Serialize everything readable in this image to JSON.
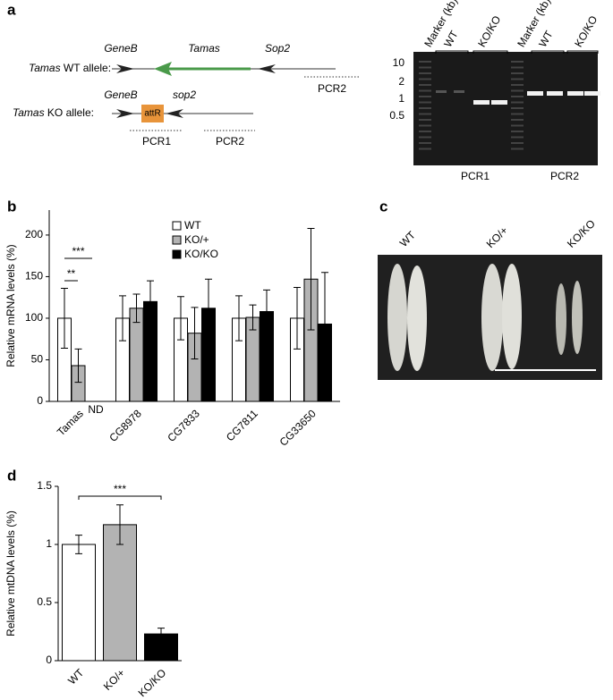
{
  "panel_a": {
    "label": "a",
    "wt_allele": {
      "gene": "Tamas",
      "name": "WT allele:",
      "genes": [
        "GeneB",
        "Tamas",
        "Sop2"
      ],
      "primer": "PCR2"
    },
    "ko_allele": {
      "gene": "Tamas",
      "name": "KO allele:",
      "genes": [
        "GeneB",
        "sop2"
      ],
      "cassette": "attR",
      "primers": [
        "PCR1",
        "PCR2"
      ]
    },
    "gel": {
      "lanes": [
        "Marker (kb)",
        "WT",
        "KO/KO",
        "Marker (kb)",
        "WT",
        "KO/KO"
      ],
      "sizes": [
        "10",
        "2",
        "1",
        "0.5"
      ],
      "reactions": [
        "PCR1",
        "PCR2"
      ]
    }
  },
  "chart_data": [
    {
      "type": "bar",
      "label": "b",
      "ylabel": "Relative mRNA levels (%)",
      "categories": [
        "Tamas",
        "CG8978",
        "CG7833",
        "CG7811",
        "CG33650"
      ],
      "series": [
        {
          "name": "WT",
          "color": "#ffffff",
          "values": [
            100,
            100,
            100,
            100,
            100
          ],
          "errors": [
            36,
            27,
            26,
            27,
            37
          ]
        },
        {
          "name": "KO/+",
          "color": "#b3b3b3",
          "values": [
            43,
            112,
            82,
            101,
            147
          ],
          "errors": [
            20,
            17,
            31,
            15,
            61
          ]
        },
        {
          "name": "KO/KO",
          "color": "#000000",
          "values": [
            null,
            120,
            112,
            108,
            93
          ],
          "errors": [
            null,
            25,
            35,
            26,
            62
          ]
        }
      ],
      "ylim": [
        0,
        230
      ],
      "yticks": [
        0,
        50,
        100,
        150,
        200
      ],
      "annotations": [
        "***",
        "**",
        "ND"
      ]
    },
    {
      "type": "bar",
      "label": "d",
      "ylabel": "Relative mtDNA levels (%)",
      "categories": [
        "WT",
        "KO/+",
        "KO/KO"
      ],
      "values": [
        1.0,
        1.17,
        0.23
      ],
      "errors": [
        0.08,
        0.17,
        0.05
      ],
      "colors": [
        "#ffffff",
        "#b3b3b3",
        "#000000"
      ],
      "ylim": [
        0,
        1.5
      ],
      "yticks": [
        0,
        0.5,
        1,
        1.5
      ],
      "annotations": [
        "***"
      ]
    }
  ],
  "panel_c": {
    "label": "c",
    "genotypes": [
      "WT",
      "KO/+",
      "KO/KO"
    ]
  }
}
